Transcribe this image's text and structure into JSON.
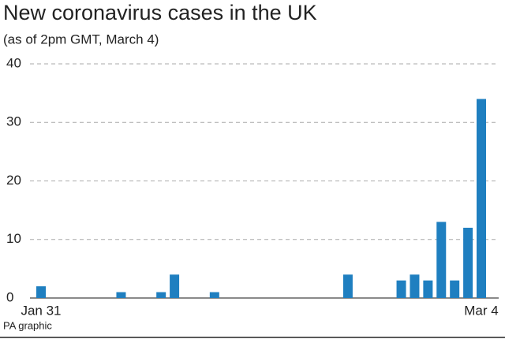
{
  "chart_data": {
    "type": "bar",
    "title": "New coronavirus cases in the UK",
    "subtitle": "(as of 2pm GMT, March 4)",
    "source": "PA graphic",
    "categories": [
      "Jan 31",
      null,
      null,
      null,
      null,
      null,
      null,
      null,
      null,
      null,
      null,
      null,
      null,
      null,
      null,
      null,
      null,
      null,
      null,
      null,
      null,
      null,
      null,
      null,
      null,
      null,
      null,
      null,
      null,
      null,
      null,
      null,
      null,
      "Mar 4"
    ],
    "values": [
      2,
      0,
      0,
      0,
      0,
      0,
      1,
      0,
      0,
      1,
      4,
      0,
      0,
      1,
      0,
      0,
      0,
      0,
      0,
      0,
      0,
      0,
      0,
      4,
      0,
      0,
      0,
      3,
      4,
      3,
      13,
      3,
      12,
      34
    ],
    "color": "#1f7fc0",
    "ylim": [
      0,
      40
    ],
    "yticks": [
      0,
      10,
      20,
      30,
      40
    ],
    "grid": true
  }
}
